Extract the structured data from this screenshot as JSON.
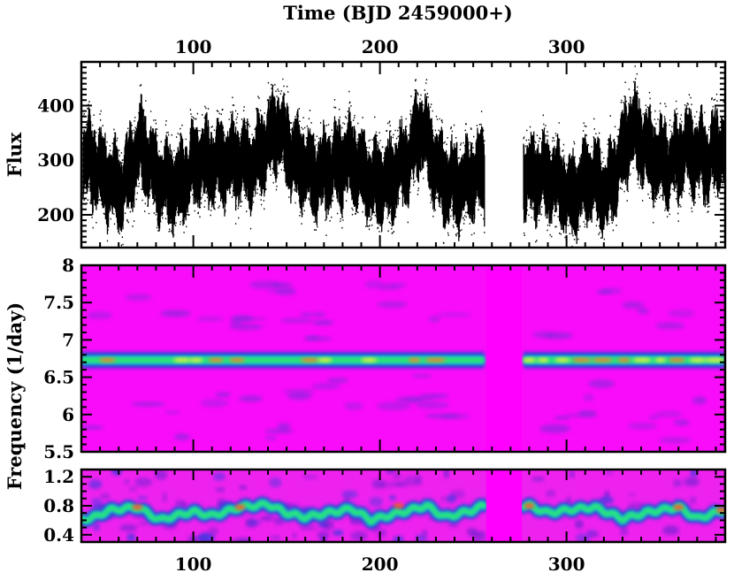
{
  "chart_data": [
    {
      "type": "scatter",
      "panel": "light-curve",
      "title": "Time (BJD 2459000+)",
      "xlabel": "",
      "ylabel": "Flux",
      "xlim": [
        40,
        385
      ],
      "ylim": [
        140,
        480
      ],
      "x_ticks": [
        100,
        200,
        300
      ],
      "y_ticks": [
        200,
        300,
        400
      ],
      "gap": [
        256,
        277
      ],
      "series": [
        {
          "x": [
            45,
            55,
            62,
            72,
            82,
            92,
            102,
            112,
            122,
            132,
            145,
            155,
            165,
            175,
            185,
            195,
            205,
            215,
            222,
            232,
            242,
            255,
            280,
            292,
            302,
            312,
            322,
            335,
            345,
            355,
            365,
            375,
            383
          ],
          "y": [
            300,
            260,
            250,
            330,
            260,
            250,
            300,
            290,
            300,
            290,
            360,
            300,
            270,
            290,
            300,
            260,
            260,
            300,
            360,
            270,
            250,
            280,
            270,
            270,
            230,
            270,
            240,
            360,
            310,
            290,
            320,
            300,
            320
          ]
        }
      ]
    },
    {
      "type": "heatmap",
      "panel": "spectrogram-high",
      "xlabel": "",
      "ylabel": "Frequency (1/day)",
      "xlim": [
        40,
        385
      ],
      "ylim": [
        5.5,
        8
      ],
      "x_ticks": [
        100,
        200,
        300
      ],
      "y_ticks": [
        5.5,
        6,
        6.5,
        7,
        7.5,
        8
      ],
      "gap": [
        256,
        277
      ],
      "ridge_frequency": 6.73
    },
    {
      "type": "heatmap",
      "panel": "spectrogram-low",
      "xlabel": "",
      "ylabel": "",
      "xlim": [
        40,
        385
      ],
      "ylim": [
        0.3,
        1.3
      ],
      "x_ticks": [
        100,
        200,
        300
      ],
      "y_ticks": [
        0.4,
        0.8,
        1.2
      ],
      "gap": [
        256,
        277
      ],
      "ridge": {
        "x": [
          45,
          55,
          70,
          82,
          90,
          100,
          110,
          125,
          140,
          150,
          160,
          172,
          185,
          195,
          210,
          225,
          235,
          250,
          255,
          280,
          290,
          300,
          315,
          330,
          345,
          360,
          370,
          384
        ],
        "y": [
          0.62,
          0.74,
          0.78,
          0.6,
          0.66,
          0.72,
          0.66,
          0.78,
          0.82,
          0.7,
          0.64,
          0.7,
          0.76,
          0.6,
          0.7,
          0.8,
          0.64,
          0.74,
          0.8,
          0.8,
          0.7,
          0.74,
          0.78,
          0.62,
          0.72,
          0.78,
          0.62,
          0.74
        ]
      }
    }
  ]
}
